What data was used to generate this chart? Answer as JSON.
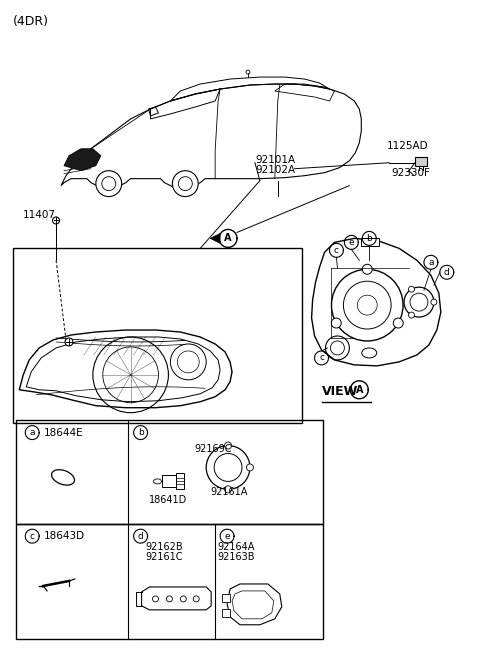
{
  "title": "(4DR)",
  "bg_color": "#ffffff",
  "line_color": "#000000",
  "labels": {
    "top_left": "(4DR)",
    "part_11407": "11407",
    "part_92101A": "92101A",
    "part_92102A": "92102A",
    "part_1125AD": "1125AD",
    "part_92330F": "92330F",
    "view_a": "VIEW",
    "cell_a_label": "a",
    "cell_a_part": "18644E",
    "cell_b_label": "b",
    "cell_c_label": "c",
    "cell_c_part": "18643D",
    "cell_d_label": "d",
    "cell_e_label": "e",
    "part_92169C": "92169C",
    "part_92161A": "92161A",
    "part_18641D": "18641D",
    "part_92162B": "92162B",
    "part_92161C": "92161C",
    "part_92164A": "92164A",
    "part_92163B": "92163B"
  },
  "figsize": [
    4.8,
    6.7
  ],
  "dpi": 100
}
